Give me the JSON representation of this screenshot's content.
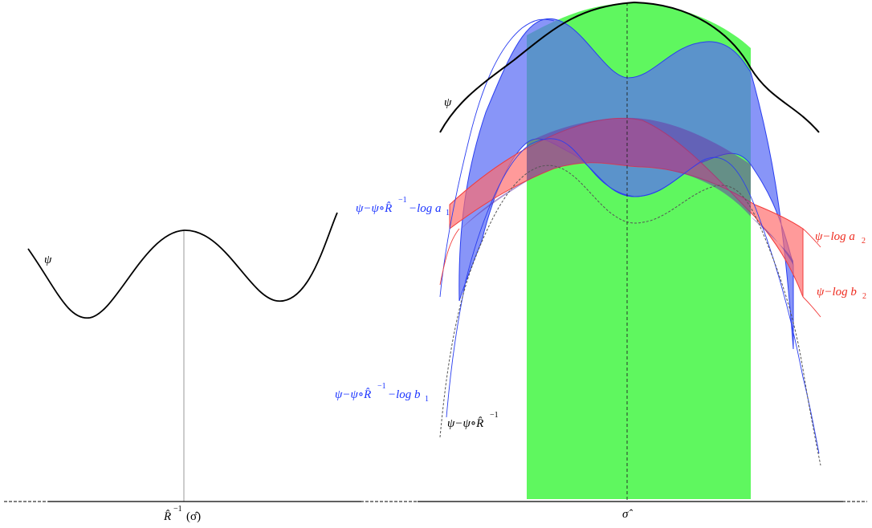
{
  "colors": {
    "axis": "#000000",
    "psi_curve": "#000000",
    "green_region": "#5ff75f",
    "blue_band": "#5a6cf5",
    "blue_band_edge": "#2a3ef0",
    "red_band": "#ff6a6a",
    "red_band_edge": "#f23c3c",
    "dashed_curve": "#555555",
    "blue_label": "#1a33ff",
    "red_label": "#ee2a1e",
    "guide_line": "#9a9a9a"
  },
  "labels": {
    "psi_left": "ψ",
    "psi_right": "ψ",
    "axis_left": "R̂",
    "axis_left_sup": "−1",
    "axis_left_arg": "(σ̂)",
    "axis_right": "σ̂",
    "blue_upper_main": "ψ−ψ∘R̂",
    "blue_upper_sup": "−1",
    "blue_upper_tail": "−log a",
    "blue_upper_sub": "1",
    "blue_lower_main": "ψ−ψ∘R̂",
    "blue_lower_sup": "−1",
    "blue_lower_tail": "−log b",
    "blue_lower_sub": "1",
    "dashed_main": "ψ−ψ∘R̂",
    "dashed_sup": "−1",
    "red_upper_main": "ψ−log a",
    "red_upper_sub": "2",
    "red_lower_main": "ψ−log b",
    "red_lower_sub": "2"
  }
}
